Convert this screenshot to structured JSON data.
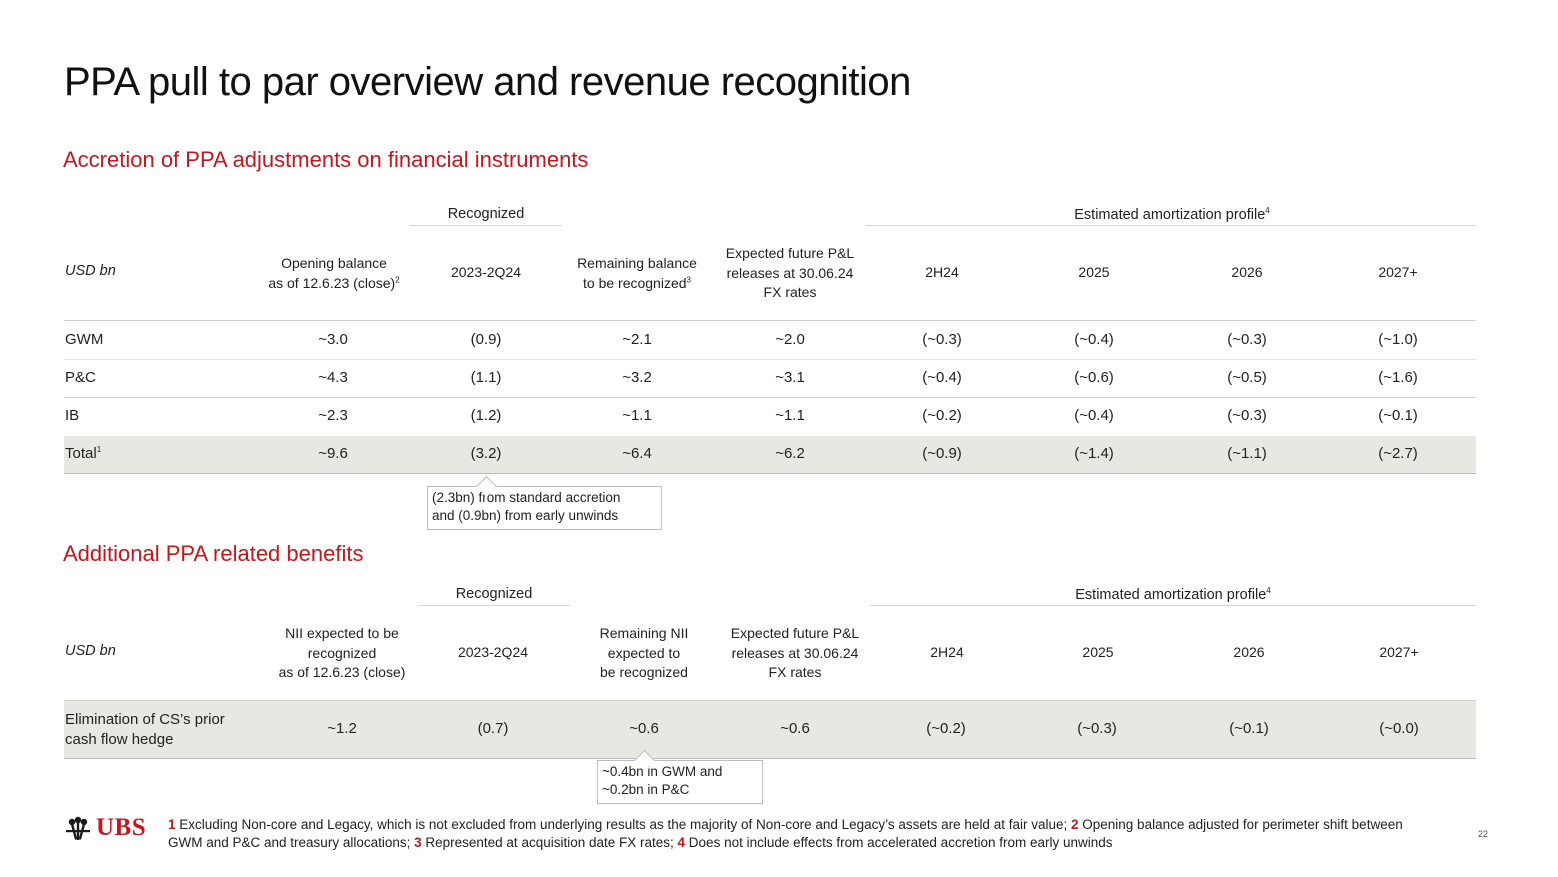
{
  "page": {
    "title": "PPA pull to par overview and revenue recognition",
    "page_number": "22",
    "logo_text": "UBS"
  },
  "section1": {
    "heading": "Accretion of PPA adjustments on financial instruments",
    "group_recognized": "Recognized",
    "group_estimated": "Estimated amortization profile",
    "group_estimated_sup": "4",
    "headers": {
      "unit": "USD bn",
      "opening_l1": "Opening balance",
      "opening_l2": "as of 12.6.23 (close)",
      "opening_sup": "2",
      "recognized": "2023-2Q24",
      "remaining_l1": "Remaining balance",
      "remaining_l2": "to be recognized",
      "remaining_sup": "3",
      "expected_l1": "Expected future P&L",
      "expected_l2": "releases at 30.06.24",
      "expected_l3": "FX rates",
      "h2h24": "2H24",
      "h2025": "2025",
      "h2026": "2026",
      "h2027": "2027+"
    },
    "rows": [
      {
        "label": "GWM",
        "sup": "",
        "values": [
          "~3.0",
          "(0.9)",
          "~2.1",
          "~2.0",
          "(~0.3)",
          "(~0.4)",
          "(~0.3)",
          "(~1.0)"
        ]
      },
      {
        "label": "P&C",
        "sup": "",
        "values": [
          "~4.3",
          "(1.1)",
          "~3.2",
          "~3.1",
          "(~0.4)",
          "(~0.6)",
          "(~0.5)",
          "(~1.6)"
        ]
      },
      {
        "label": "IB",
        "sup": "",
        "values": [
          "~2.3",
          "(1.2)",
          "~1.1",
          "~1.1",
          "(~0.2)",
          "(~0.4)",
          "(~0.3)",
          "(~0.1)"
        ]
      },
      {
        "label": "Total",
        "sup": "1",
        "values": [
          "~9.6",
          "(3.2)",
          "~6.4",
          "~6.2",
          "(~0.9)",
          "(~1.4)",
          "(~1.1)",
          "(~2.7)"
        ]
      }
    ],
    "callout_l1": "(2.3bn) from standard accretion",
    "callout_l2": "and (0.9bn) from early unwinds"
  },
  "section2": {
    "heading": "Additional PPA related benefits",
    "group_recognized": "Recognized",
    "group_estimated": "Estimated amortization profile",
    "group_estimated_sup": "4",
    "headers": {
      "unit": "USD bn",
      "nii_l1": "NII expected to be",
      "nii_l2": "recognized",
      "nii_l3": "as of 12.6.23 (close)",
      "recognized": "2023-2Q24",
      "remaining_l1": "Remaining NII",
      "remaining_l2": "expected to",
      "remaining_l3": "be recognized",
      "expected_l1": "Expected future P&L",
      "expected_l2": "releases at 30.06.24",
      "expected_l3": "FX rates",
      "h2h24": "2H24",
      "h2025": "2025",
      "h2026": "2026",
      "h2027": "2027+"
    },
    "row": {
      "label_l1": "Elimination of CS’s prior",
      "label_l2": "cash flow hedge",
      "values": [
        "~1.2",
        "(0.7)",
        "~0.6",
        "~0.6",
        "(~0.2)",
        "(~0.3)",
        "(~0.1)",
        "(~0.0)"
      ]
    },
    "callout_l1": "~0.4bn in GWM and",
    "callout_l2": "~0.2bn in P&C"
  },
  "footnotes": {
    "n1": "1",
    "t1": " Excluding Non-core and Legacy, which is not excluded from underlying results as the majority of Non-core and Legacy’s assets are held at fair value; ",
    "n2": "2",
    "t2": " Opening balance adjusted for perimeter shift between GWM and P&C and treasury allocations; ",
    "n3": "3",
    "t3": " Represented at acquisition date FX rates; ",
    "n4": "4",
    "t4": " Does not include effects from accelerated accretion from early unwinds"
  },
  "colors": {
    "accent": "#c4161c",
    "total_row": "#e8e8e3",
    "rule": "#cfcfcf"
  }
}
